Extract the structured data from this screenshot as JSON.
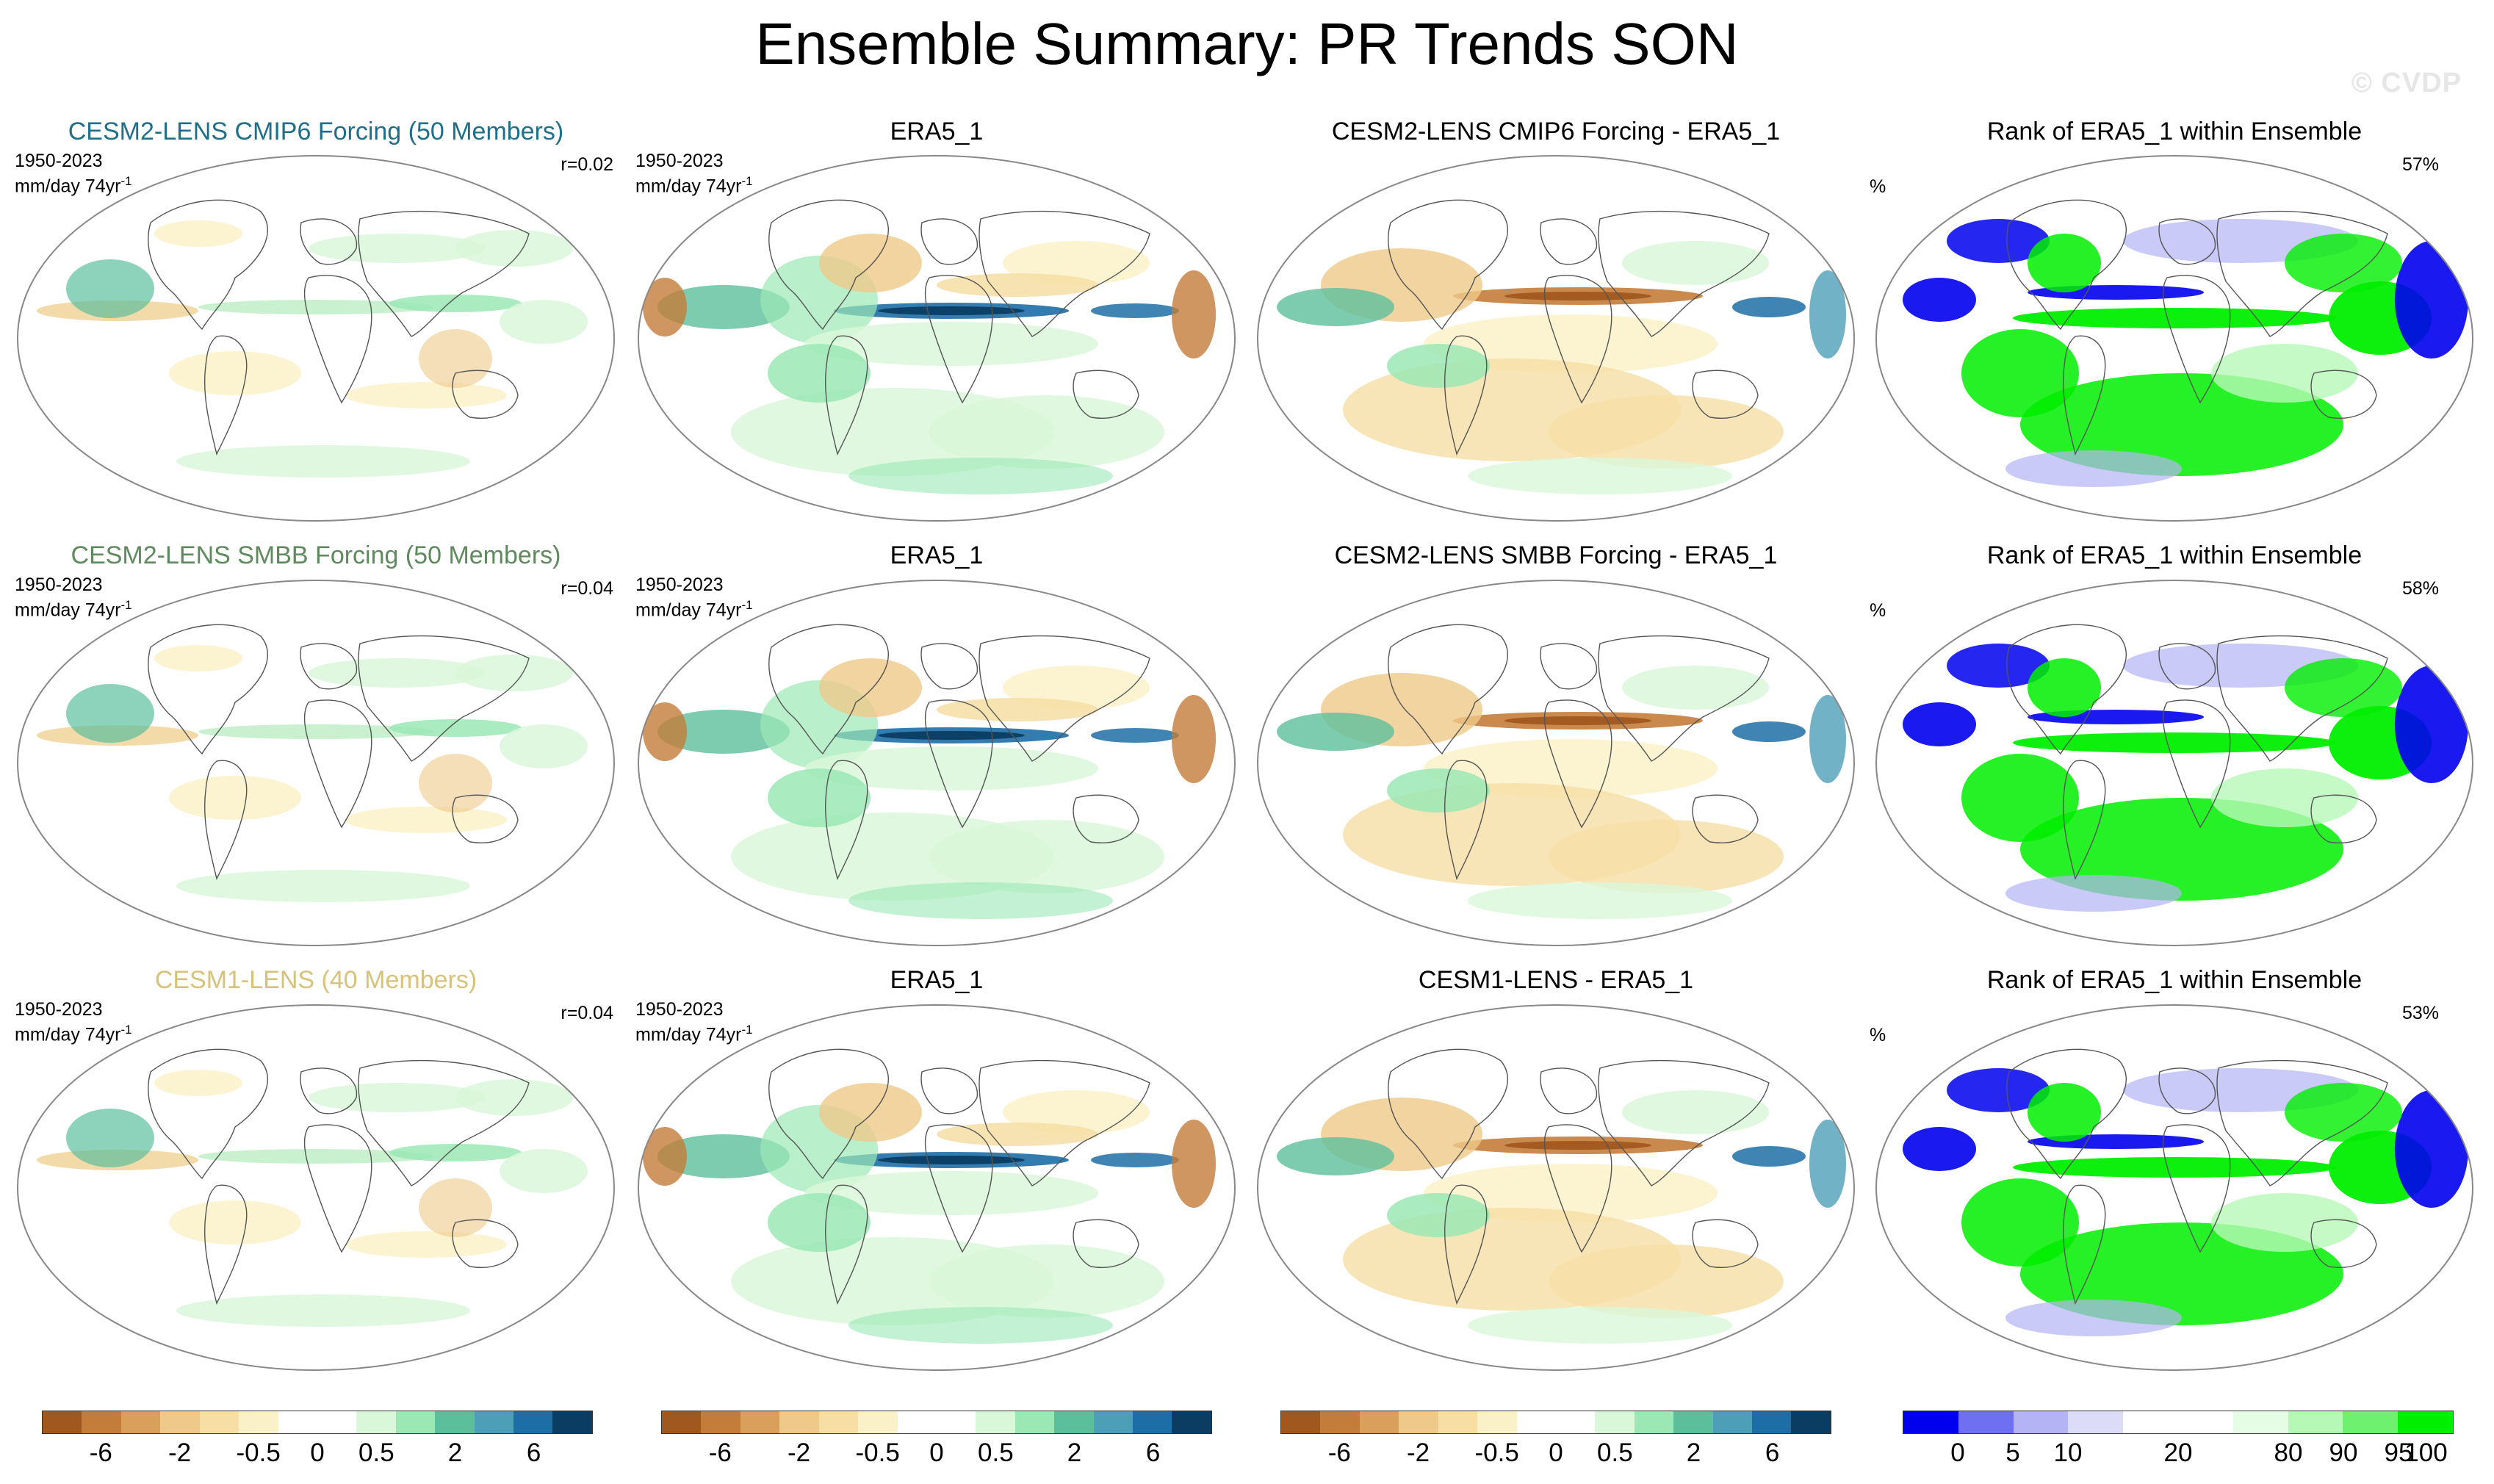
{
  "title": "Ensemble Summary: PR Trends SON",
  "watermark": "© CVDP",
  "rows": [
    {
      "model_title": "CESM2-LENS CMIP6 Forcing (50 Members)",
      "model_title_color": "#1f6f8b",
      "period": "1950-2023",
      "units": "mm/day 74yr",
      "units_sup": "-1",
      "corr": "r=0.02",
      "obs_title": "ERA5_1",
      "obs_period": "1950-2023",
      "obs_units": "mm/day 74yr",
      "obs_units_sup": "-1",
      "diff_title": "CESM2-LENS CMIP6 Forcing - ERA5_1",
      "rank_title": "Rank of ERA5_1 within Ensemble",
      "rank_unit": "%",
      "rank_pct": "57%"
    },
    {
      "model_title": "CESM2-LENS SMBB Forcing (50 Members)",
      "model_title_color": "#5e8a5e",
      "period": "1950-2023",
      "units": "mm/day 74yr",
      "units_sup": "-1",
      "corr": "r=0.04",
      "obs_title": "ERA5_1",
      "obs_period": "1950-2023",
      "obs_units": "mm/day 74yr",
      "obs_units_sup": "-1",
      "diff_title": "CESM2-LENS SMBB Forcing - ERA5_1",
      "rank_title": "Rank of ERA5_1 within Ensemble",
      "rank_unit": "%",
      "rank_pct": "58%"
    },
    {
      "model_title": "CESM1-LENS (40 Members)",
      "model_title_color": "#d8c27a",
      "period": "1950-2023",
      "units": "mm/day 74yr",
      "units_sup": "-1",
      "corr": "r=0.04",
      "obs_title": "ERA5_1",
      "obs_period": "1950-2023",
      "obs_units": "mm/day 74yr",
      "obs_units_sup": "-1",
      "diff_title": "CESM1-LENS - ERA5_1",
      "rank_title": "Rank of ERA5_1 within Ensemble",
      "rank_unit": "%",
      "rank_pct": "53%"
    }
  ],
  "trend_colorbar": {
    "colors": [
      "#a0581f",
      "#c47c3a",
      "#d9a05c",
      "#efc98a",
      "#f6dea5",
      "#fbf1c8",
      "#ffffff",
      "#ffffff",
      "#d9f7d9",
      "#9be8b5",
      "#5cbf9c",
      "#4d9fb8",
      "#1d6ea6",
      "#0b3d63"
    ],
    "labels": [
      "-6",
      "-2",
      "-0.5",
      "0",
      "0.5",
      "2",
      "6"
    ]
  },
  "rank_colorbar": {
    "colors": [
      "#0000ee",
      "#6f6ff2",
      "#b3b3f5",
      "#dcdcf9",
      "#ffffff",
      "#ffffff",
      "#e4fde4",
      "#b6f8b6",
      "#6ef16e",
      "#00ee00"
    ],
    "labels": [
      "0",
      "5",
      "10",
      "20",
      "80",
      "90",
      "95",
      "100"
    ]
  }
}
